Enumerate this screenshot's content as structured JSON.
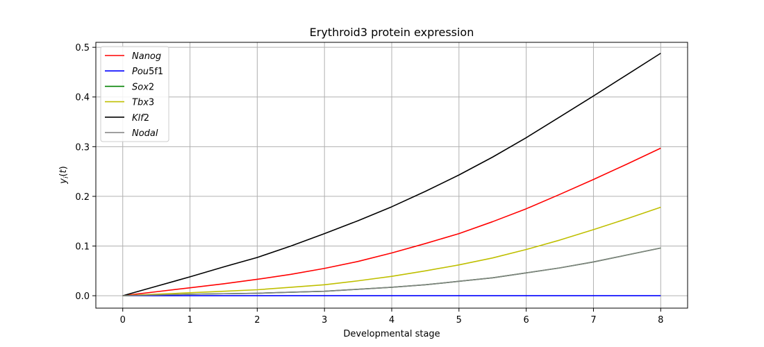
{
  "chart_data": {
    "type": "line",
    "title": "Erythroid3 protein expression",
    "xlabel": "Developmental stage",
    "ylabel": "y_i(t)",
    "xlim": [
      -0.4,
      8.4
    ],
    "ylim": [
      -0.025,
      0.51
    ],
    "xticks": [
      "0",
      "1",
      "2",
      "3",
      "4",
      "5",
      "6",
      "7",
      "8"
    ],
    "yticks": [
      "0.0",
      "0.1",
      "0.2",
      "0.3",
      "0.4",
      "0.5"
    ],
    "grid": true,
    "legend_position": "top-left",
    "x": [
      0,
      0.5,
      1,
      1.5,
      2,
      2.5,
      3,
      3.5,
      4,
      4.5,
      5,
      5.5,
      6,
      6.5,
      7,
      7.5,
      8
    ],
    "series": [
      {
        "name": "Nanog",
        "color": "#ff0000",
        "values": [
          0,
          0.008,
          0.016,
          0.024,
          0.033,
          0.043,
          0.055,
          0.069,
          0.086,
          0.105,
          0.125,
          0.149,
          0.175,
          0.204,
          0.234,
          0.265,
          0.297
        ]
      },
      {
        "name": "Pou5f1",
        "color": "#0000ff",
        "values": [
          0,
          0,
          0,
          0,
          0,
          0,
          0,
          0,
          0,
          0,
          0,
          0,
          0,
          0,
          0,
          0,
          0
        ]
      },
      {
        "name": "Sox2",
        "color": "#008000",
        "values": [
          0,
          0.0015,
          0.003,
          0.004,
          0.005,
          0.007,
          0.009,
          0.013,
          0.017,
          0.022,
          0.029,
          0.036,
          0.046,
          0.056,
          0.068,
          0.082,
          0.096
        ]
      },
      {
        "name": "Tbx3",
        "color": "#bfbf00",
        "values": [
          0,
          0.003,
          0.006,
          0.009,
          0.012,
          0.017,
          0.022,
          0.03,
          0.039,
          0.05,
          0.062,
          0.076,
          0.093,
          0.112,
          0.133,
          0.155,
          0.178
        ]
      },
      {
        "name": "Klf2",
        "color": "#000000",
        "values": [
          0,
          0.019,
          0.038,
          0.058,
          0.077,
          0.1,
          0.125,
          0.151,
          0.179,
          0.21,
          0.243,
          0.279,
          0.318,
          0.36,
          0.402,
          0.445,
          0.488
        ]
      },
      {
        "name": "Nodal",
        "color": "#808080",
        "values": [
          0,
          0.0015,
          0.003,
          0.004,
          0.005,
          0.007,
          0.009,
          0.013,
          0.017,
          0.022,
          0.029,
          0.036,
          0.046,
          0.056,
          0.068,
          0.082,
          0.096
        ]
      }
    ]
  }
}
